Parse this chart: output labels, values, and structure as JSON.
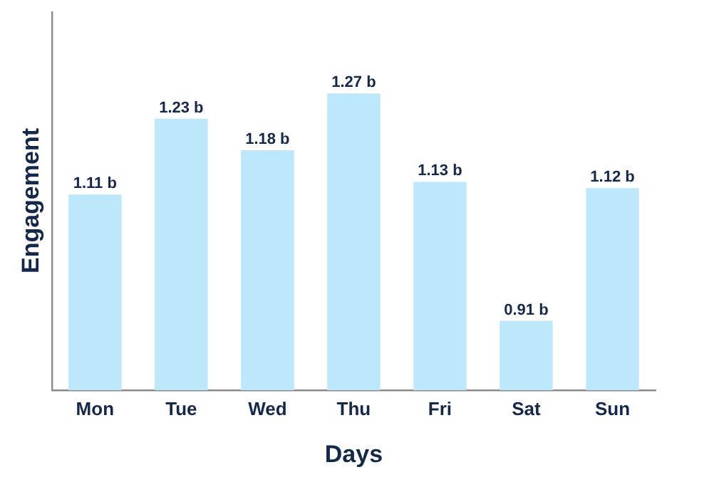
{
  "chart_data": {
    "type": "bar",
    "xlabel": "Days",
    "ylabel": "Engagement",
    "categories": [
      "Mon",
      "Tue",
      "Wed",
      "Thu",
      "Fri",
      "Sat",
      "Sun"
    ],
    "values": [
      1.11,
      1.23,
      1.18,
      1.27,
      1.13,
      0.91,
      1.12
    ],
    "value_labels": [
      "1.11 b",
      "1.23 b",
      "1.18 b",
      "1.27 b",
      "1.13 b",
      "0.91 b",
      "1.12 b"
    ],
    "color": "#bde8fb",
    "grid": false,
    "legend": false,
    "tick_labels": "x"
  }
}
